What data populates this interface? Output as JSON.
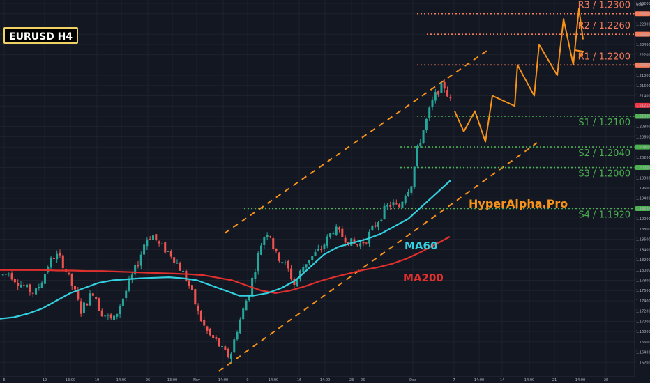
{
  "chart_data": {
    "type": "candlestick",
    "title": "EURUSD H4",
    "currency_label": "USD",
    "ylim": [
      1.16,
      1.232
    ],
    "y_ticks": [
      "1.23200",
      "1.23000",
      "1.22800",
      "1.22600",
      "1.22400",
      "1.22200",
      "1.22000",
      "1.21800",
      "1.21600",
      "1.21400",
      "1.21200",
      "1.21000",
      "1.20800",
      "1.20600",
      "1.20400",
      "1.20200",
      "1.20000",
      "1.19800",
      "1.19600",
      "1.19400",
      "1.19200",
      "1.19000",
      "1.18800",
      "1.18600",
      "1.18400",
      "1.18200",
      "1.18000",
      "1.17800",
      "1.17600",
      "1.17400",
      "1.17200",
      "1.17000",
      "1.16800",
      "1.16600",
      "1.16400",
      "1.16200"
    ],
    "x_ticks": [
      "6",
      "12",
      "13:00",
      "19",
      "14:00",
      "26",
      "13:00",
      "Nov",
      "14:00",
      "9",
      "14:00",
      "16",
      "14:00",
      "23",
      "26",
      "Dec",
      "7",
      "14:00",
      "14",
      "14:00",
      "21",
      "14:00",
      "28"
    ],
    "current_price": {
      "label": "1.21212",
      "value": 1.21212,
      "color": "#f23645"
    },
    "levels": [
      {
        "name": "R3",
        "value": 1.23,
        "label": "R3 / 1.2300",
        "axis_label": "1.23000",
        "color": "#f77c5c"
      },
      {
        "name": "R2",
        "value": 1.226,
        "label": "R2 / 1.2260",
        "axis_label": "1.22600",
        "color": "#f77c5c"
      },
      {
        "name": "R1",
        "value": 1.22,
        "label": "R1 / 1.2200",
        "axis_label": "1.22000",
        "color": "#f77c5c"
      },
      {
        "name": "S1",
        "value": 1.21,
        "label": "S1 / 1.2100",
        "axis_label": "1.21000",
        "color": "#4caf50"
      },
      {
        "name": "S2",
        "value": 1.204,
        "label": "S2 / 1.2040",
        "axis_label": "1.20400",
        "color": "#4caf50"
      },
      {
        "name": "S3",
        "value": 1.2,
        "label": "S3 / 1.2000",
        "axis_label": "1.20000",
        "color": "#4caf50"
      },
      {
        "name": "S4",
        "value": 1.192,
        "label": "S4 / 1.1920",
        "axis_label": "1.19200",
        "color": "#4caf50"
      }
    ],
    "series": [
      {
        "name": "MA60",
        "color": "#33d1e0"
      },
      {
        "name": "MA200",
        "color": "#e0302e"
      }
    ],
    "brand": "HyperAlpha.Pro",
    "close_path": [
      1.179,
      1.1795,
      1.178,
      1.177,
      1.176,
      1.1755,
      1.178,
      1.181,
      1.183,
      1.182,
      1.179,
      1.176,
      1.172,
      1.174,
      1.176,
      1.172,
      1.171,
      1.17,
      1.173,
      1.176,
      1.179,
      1.182,
      1.186,
      1.187,
      1.185,
      1.184,
      1.183,
      1.181,
      1.179,
      1.176,
      1.172,
      1.169,
      1.167,
      1.166,
      1.164,
      1.163,
      1.168,
      1.172,
      1.176,
      1.181,
      1.186,
      1.188,
      1.183,
      1.182,
      1.18,
      1.177,
      1.18,
      1.182,
      1.183,
      1.184,
      1.186,
      1.188,
      1.187,
      1.186,
      1.185,
      1.185,
      1.186,
      1.188,
      1.19,
      1.192,
      1.193,
      1.192,
      1.195,
      1.197,
      1.204,
      1.208,
      1.212,
      1.215,
      1.216,
      1.213
    ],
    "ma60_path": [
      1.1705,
      1.1708,
      1.1715,
      1.1725,
      1.174,
      1.1755,
      1.1765,
      1.1775,
      1.178,
      1.1782,
      1.1784,
      1.1785,
      1.1786,
      1.1784,
      1.178,
      1.177,
      1.176,
      1.175,
      1.175,
      1.1755,
      1.1765,
      1.178,
      1.1805,
      1.183,
      1.1845,
      1.1853,
      1.186,
      1.187,
      1.1885,
      1.19,
      1.1925,
      1.195,
      1.1975
    ],
    "ma200_path": [
      1.18,
      1.18,
      1.18,
      1.18,
      1.1799,
      1.1799,
      1.1798,
      1.1798,
      1.1797,
      1.1796,
      1.1795,
      1.1794,
      1.1793,
      1.1792,
      1.179,
      1.1785,
      1.178,
      1.177,
      1.176,
      1.1755,
      1.176,
      1.1768,
      1.1778,
      1.1786,
      1.1793,
      1.18,
      1.1805,
      1.1812,
      1.1822,
      1.1835,
      1.185,
      1.1865
    ],
    "forecast_path": [
      1.211,
      1.207,
      1.211,
      1.205,
      1.214,
      1.212,
      1.22,
      1.214,
      1.224,
      1.218,
      1.229,
      1.22,
      1.231,
      1.225
    ]
  }
}
